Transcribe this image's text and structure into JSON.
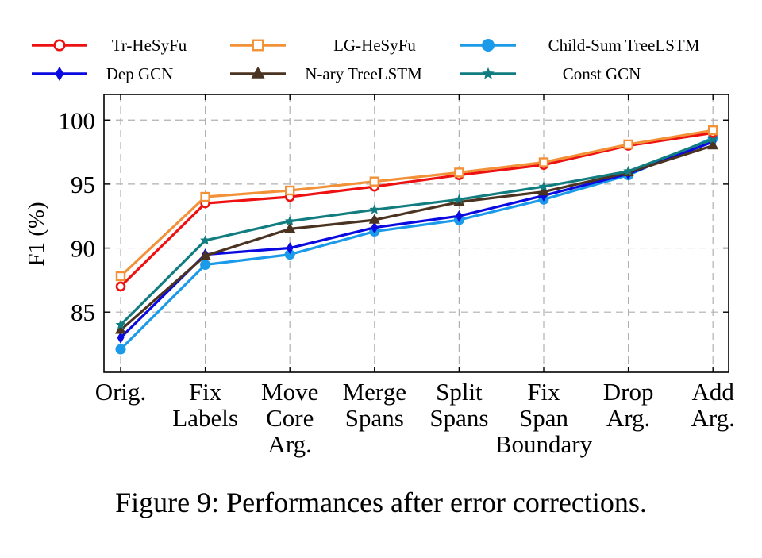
{
  "caption": "Figure 9: Performances after error corrections.",
  "chart_data": {
    "type": "line",
    "categories": [
      [
        "Orig."
      ],
      [
        "Fix",
        "Labels"
      ],
      [
        "Move",
        "Core",
        "Arg."
      ],
      [
        "Merge",
        "Spans"
      ],
      [
        "Split",
        "Spans"
      ],
      [
        "Fix",
        "Span",
        "Boundary"
      ],
      [
        "Drop",
        "Arg."
      ],
      [
        "Add",
        "Arg."
      ]
    ],
    "ylabel": "F1 (%)",
    "xlabel": "",
    "ylim": [
      80.3,
      102
    ],
    "yticks": [
      85,
      90,
      95,
      100
    ],
    "grid": true,
    "legend": "top",
    "series": [
      {
        "name": "Tr-HeSyFu",
        "color": "#ee1111",
        "marker": "circle",
        "values": [
          87.0,
          93.5,
          94.0,
          94.8,
          95.7,
          96.5,
          98.0,
          99.0
        ]
      },
      {
        "name": "LG-HeSyFu",
        "color": "#f29137",
        "marker": "square",
        "values": [
          87.8,
          94.0,
          94.5,
          95.2,
          95.9,
          96.7,
          98.1,
          99.2
        ]
      },
      {
        "name": "Child-Sum TreeLSTM",
        "color": "#1a9ae8",
        "marker": "dot",
        "values": [
          82.1,
          88.7,
          89.5,
          91.3,
          92.2,
          93.8,
          95.7,
          98.6
        ]
      },
      {
        "name": "Dep GCN",
        "color": "#0a0ae0",
        "marker": "diamond",
        "values": [
          83.0,
          89.5,
          90.0,
          91.6,
          92.5,
          94.1,
          95.8,
          98.3
        ]
      },
      {
        "name": "N-ary TreeLSTM",
        "color": "#4a3320",
        "marker": "triangle",
        "values": [
          83.6,
          89.4,
          91.5,
          92.2,
          93.6,
          94.4,
          95.9,
          98.0
        ]
      },
      {
        "name": "Const GCN",
        "color": "#127d80",
        "marker": "star",
        "values": [
          84.0,
          90.6,
          92.1,
          93.0,
          93.8,
          94.8,
          96.0,
          98.5
        ]
      }
    ]
  }
}
